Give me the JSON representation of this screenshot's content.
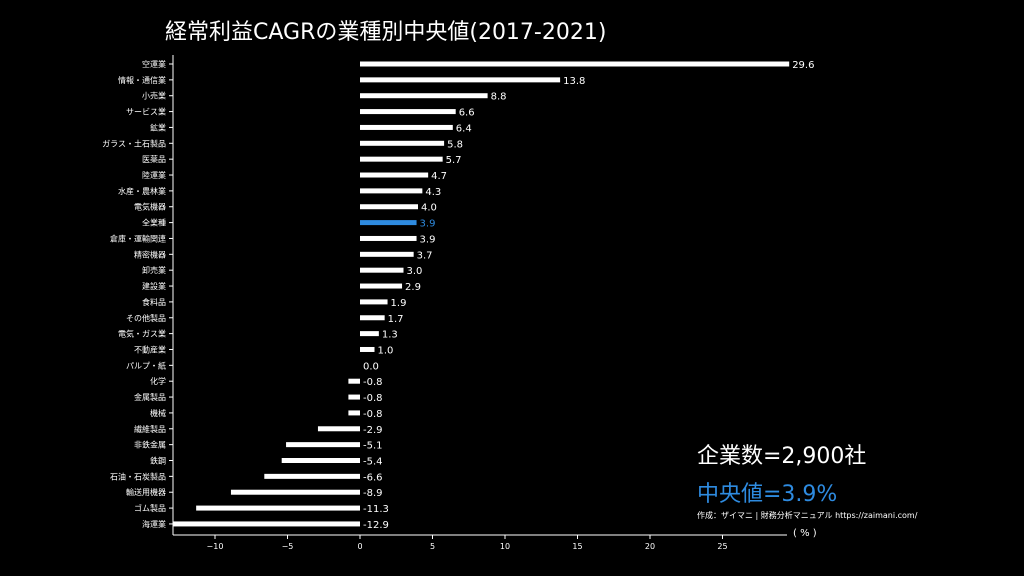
{
  "title": "経常利益CAGRの業種別中央値(2017-2021)",
  "company_count_label": "企業数=2,900社",
  "median_label": "中央値=3.9%",
  "credit": "作成：ザイマニ | 財務分析マニュアル https://zaimani.com/",
  "x_unit_label": "( % )",
  "colors": {
    "bar": "#ffffff",
    "highlight": "#2e8be0",
    "background": "#000000"
  },
  "chart_data": {
    "type": "bar",
    "orientation": "horizontal",
    "categories": [
      "空運業",
      "情報・通信業",
      "小売業",
      "サービス業",
      "鉱業",
      "ガラス・土石製品",
      "医薬品",
      "陸運業",
      "水産・農林業",
      "電気機器",
      "全業種",
      "倉庫・運輸関連",
      "精密機器",
      "卸売業",
      "建設業",
      "食料品",
      "その他製品",
      "電気・ガス業",
      "不動産業",
      "パルプ・紙",
      "化学",
      "金属製品",
      "機械",
      "繊維製品",
      "非鉄金属",
      "鉄鋼",
      "石油・石炭製品",
      "輸送用機器",
      "ゴム製品",
      "海運業"
    ],
    "values": [
      29.6,
      13.8,
      8.8,
      6.6,
      6.4,
      5.8,
      5.7,
      4.7,
      4.3,
      4.0,
      3.9,
      3.9,
      3.7,
      3.0,
      2.9,
      1.9,
      1.7,
      1.3,
      1.0,
      0.0,
      -0.8,
      -0.8,
      -0.8,
      -2.9,
      -5.1,
      -5.4,
      -6.6,
      -8.9,
      -11.3,
      -12.9
    ],
    "value_labels": [
      "29.6",
      "13.8",
      "8.8",
      "6.6",
      "6.4",
      "5.8",
      "5.7",
      "4.7",
      "4.3",
      "4.0",
      "3.9",
      "3.9",
      "3.7",
      "3.0",
      "2.9",
      "1.9",
      "1.7",
      "1.3",
      "1.0",
      "0.0",
      "-0.8",
      "-0.8",
      "-0.8",
      "-2.9",
      "-5.1",
      "-5.4",
      "-6.6",
      "-8.9",
      "-11.3",
      "-12.9"
    ],
    "highlight_category": "全業種",
    "x_ticks": [
      -10,
      -5,
      0,
      5,
      10,
      15,
      20,
      25
    ],
    "x_tick_labels": [
      "−10",
      "−5",
      "0",
      "5",
      "10",
      "15",
      "20",
      "25"
    ],
    "xlim": [
      -13,
      29.6
    ]
  }
}
